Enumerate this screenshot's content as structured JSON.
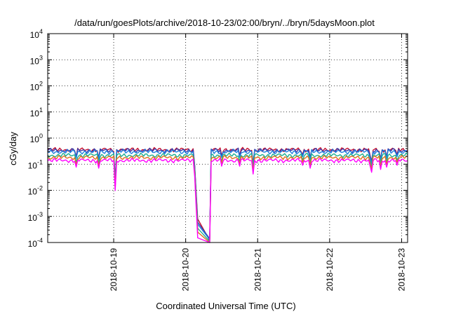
{
  "chart_data": {
    "type": "line",
    "title": "/data/run/goesPlots/archive/2018-10-23/02:00/bryn/../bryn/5daysMoon.plot",
    "xlabel": "Coordinated Universal Time (UTC)",
    "ylabel": "cGy/day",
    "yscale": "log",
    "ylim": [
      0.0001,
      10000
    ],
    "yticks": [
      {
        "base": "10",
        "exp": "-4",
        "value": 0.0001
      },
      {
        "base": "10",
        "exp": "-3",
        "value": 0.001
      },
      {
        "base": "10",
        "exp": "-2",
        "value": 0.01
      },
      {
        "base": "10",
        "exp": "-1",
        "value": 0.1
      },
      {
        "base": "10",
        "exp": "0",
        "value": 1
      },
      {
        "base": "10",
        "exp": "1",
        "value": 10
      },
      {
        "base": "10",
        "exp": "2",
        "value": 100
      },
      {
        "base": "10",
        "exp": "3",
        "value": 1000
      },
      {
        "base": "10",
        "exp": "4",
        "value": 10000
      }
    ],
    "xlim": [
      "2018-10-18T02:00",
      "2018-10-23T02:00"
    ],
    "xticks": [
      "2018-10-19",
      "2018-10-20",
      "2018-10-21",
      "2018-10-22",
      "2018-10-23"
    ],
    "grid": true,
    "legend": "none",
    "gap": {
      "start": "2018-10-20T04:00",
      "end": "2018-10-20T08:00"
    },
    "dips": [
      {
        "at": "2018-10-18T11:30",
        "factor": 0.55
      },
      {
        "at": "2018-10-18T19:00",
        "factor": 0.5
      },
      {
        "at": "2018-10-19T00:30",
        "factor": 0.07
      },
      {
        "at": "2018-10-20T12:00",
        "factor": 0.6
      },
      {
        "at": "2018-10-20T18:00",
        "factor": 0.6
      },
      {
        "at": "2018-10-20T22:30",
        "factor": 0.3
      },
      {
        "at": "2018-10-21T15:00",
        "factor": 0.65
      },
      {
        "at": "2018-10-21T17:30",
        "factor": 0.5
      },
      {
        "at": "2018-10-22T13:30",
        "factor": 0.6
      },
      {
        "at": "2018-10-22T14:00",
        "factor": 0.35
      },
      {
        "at": "2018-10-22T17:00",
        "factor": 0.45
      },
      {
        "at": "2018-10-22T19:00",
        "factor": 0.55
      },
      {
        "at": "2018-10-22T22:30",
        "factor": 0.65
      }
    ],
    "series": [
      {
        "color": "#c8102e",
        "base": 0.36,
        "gap_before": 0.0008,
        "gap_after": 0.00012
      },
      {
        "color": "#3a3aaa",
        "base": 0.34,
        "gap_before": 0.0006,
        "gap_after": 0.00014
      },
      {
        "color": "#1f7fe0",
        "base": 0.3,
        "gap_before": 0.0005,
        "gap_after": 0.00013
      },
      {
        "color": "#20b090",
        "base": 0.22,
        "gap_before": 0.00035,
        "gap_after": 0.00011
      },
      {
        "color": "#e07020",
        "base": 0.18,
        "gap_before": 0.00025,
        "gap_after": 0.0001
      },
      {
        "color": "#ff00ff",
        "base": 0.14,
        "gap_before": 0.00015,
        "gap_after": 0.0001
      }
    ]
  }
}
